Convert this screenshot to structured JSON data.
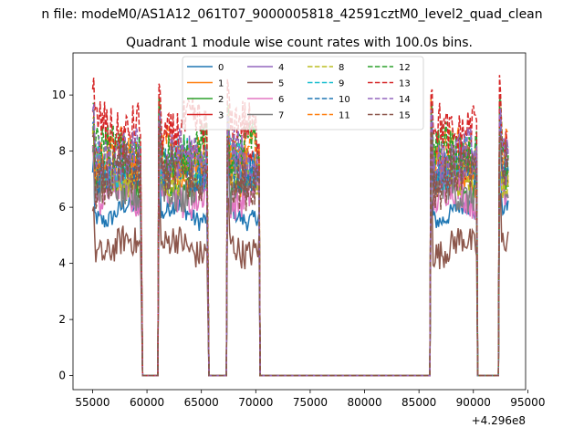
{
  "chart_data": {
    "type": "line",
    "suptitle": "n file: modeM0/AS1A12_061T07_9000005818_42591cztM0_level2_quad_clean",
    "title": "Quadrant 1 module wise count rates with 100.0s bins.",
    "xlabel": "",
    "ylabel": "",
    "x_offset_label": "+4.296e8",
    "xlim": [
      53200,
      94800
    ],
    "ylim": [
      -0.5,
      11.5
    ],
    "xticks": [
      55000,
      60000,
      65000,
      70000,
      75000,
      80000,
      85000,
      90000,
      95000
    ],
    "xtick_labels": [
      "55000",
      "60000",
      "65000",
      "70000",
      "75000",
      "80000",
      "85000",
      "90000",
      "95000"
    ],
    "yticks": [
      0,
      2,
      4,
      6,
      8,
      10
    ],
    "ytick_labels": [
      "0",
      "2",
      "4",
      "6",
      "8",
      "10"
    ],
    "grid": false,
    "legend_position": "upper center",
    "x_segments": [
      {
        "start": 55000,
        "end": 59400,
        "active": true
      },
      {
        "start": 59600,
        "end": 61000,
        "active": false
      },
      {
        "start": 61100,
        "end": 65500,
        "active": true
      },
      {
        "start": 65700,
        "end": 67300,
        "active": false
      },
      {
        "start": 67400,
        "end": 70300,
        "active": true
      },
      {
        "start": 70400,
        "end": 86000,
        "active": false
      },
      {
        "start": 86100,
        "end": 90300,
        "active": true
      },
      {
        "start": 90400,
        "end": 92300,
        "active": false
      },
      {
        "start": 92400,
        "end": 93200,
        "active": true
      }
    ],
    "series": [
      {
        "name": "0",
        "level": 5.8,
        "color": "#1f77b4",
        "style": "solid"
      },
      {
        "name": "1",
        "level": 7.0,
        "color": "#ff7f0e",
        "style": "solid"
      },
      {
        "name": "2",
        "level": 6.8,
        "color": "#2ca02c",
        "style": "solid"
      },
      {
        "name": "3",
        "level": 7.5,
        "color": "#d62728",
        "style": "solid"
      },
      {
        "name": "4",
        "level": 7.3,
        "color": "#9467bd",
        "style": "solid"
      },
      {
        "name": "5",
        "level": 4.6,
        "color": "#8c564b",
        "style": "solid"
      },
      {
        "name": "6",
        "level": 6.4,
        "color": "#e377c2",
        "style": "solid"
      },
      {
        "name": "7",
        "level": 6.6,
        "color": "#7f7f7f",
        "style": "solid"
      },
      {
        "name": "8",
        "level": 7.2,
        "color": "#bcbd22",
        "style": "dashed"
      },
      {
        "name": "9",
        "level": 7.6,
        "color": "#17becf",
        "style": "dashed"
      },
      {
        "name": "10",
        "level": 7.4,
        "color": "#1f77b4",
        "style": "dashed"
      },
      {
        "name": "11",
        "level": 7.9,
        "color": "#ff7f0e",
        "style": "dashed"
      },
      {
        "name": "12",
        "level": 8.0,
        "color": "#2ca02c",
        "style": "dashed"
      },
      {
        "name": "13",
        "level": 8.8,
        "color": "#d62728",
        "style": "dashed"
      },
      {
        "name": "14",
        "level": 7.7,
        "color": "#9467bd",
        "style": "dashed"
      },
      {
        "name": "15",
        "level": 7.1,
        "color": "#8c564b",
        "style": "dashed"
      }
    ]
  }
}
